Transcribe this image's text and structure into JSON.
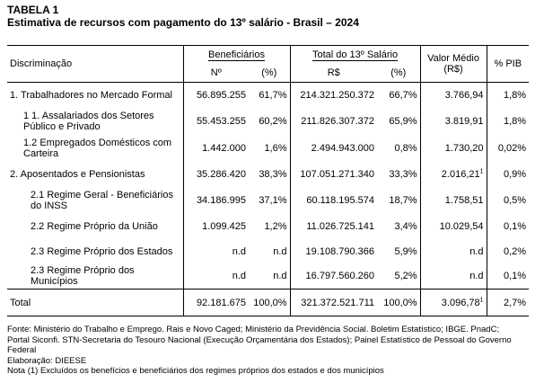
{
  "title": "TABELA 1",
  "subtitle": "Estimativa de recursos com pagamento do 13º salário - Brasil – 2024",
  "headers": {
    "discriminacao": "Discriminação",
    "beneficiarios": "Beneficiários",
    "total13": "Total do 13º Salário",
    "valor_medio": "Valor Médio",
    "valor_medio_unit": "(R$)",
    "pib": "% PIB",
    "n": "Nº",
    "pct1": "(%)",
    "rs": "R$",
    "pct2": "(%)"
  },
  "rows": [
    {
      "label": "1. Trabalhadores no Mercado Formal",
      "n": "56.895.255",
      "pct1": "61,7%",
      "rs": "214.321.250.372",
      "pct2": "66,7%",
      "vm": "3.766,94",
      "vm_note": "",
      "pib": "1,8%"
    },
    {
      "label": "1 1. Assalariados dos Setores Público e Privado",
      "n": "55.453.255",
      "pct1": "60,2%",
      "rs": "211.826.307.372",
      "pct2": "65,9%",
      "vm": "3.819,91",
      "vm_note": "",
      "pib": "1,8%"
    },
    {
      "label": "1.2 Empregados Domésticos com Carteira",
      "n": "1.442.000",
      "pct1": "1,6%",
      "rs": "2.494.943.000",
      "pct2": "0,8%",
      "vm": "1.730,20",
      "vm_note": "",
      "pib": "0,02%"
    },
    {
      "label": "2. Aposentados e Pensionistas",
      "n": "35.286.420",
      "pct1": "38,3%",
      "rs": "107.051.271.340",
      "pct2": "33,3%",
      "vm": "2.016,21",
      "vm_note": "1",
      "pib": "0,9%"
    },
    {
      "label": "2.1 Regime Geral - Beneficiários do INSS",
      "n": "34.186.995",
      "pct1": "37,1%",
      "rs": "60.118.195.574",
      "pct2": "18,7%",
      "vm": "1.758,51",
      "vm_note": "",
      "pib": "0,5%"
    },
    {
      "label": "2.2 Regime Próprio da União",
      "n": "1.099.425",
      "pct1": "1,2%",
      "rs": "11.026.725.141",
      "pct2": "3,4%",
      "vm": "10.029,54",
      "vm_note": "",
      "pib": "0,1%"
    },
    {
      "label": "2.3 Regime Próprio dos Estados",
      "n": "n.d",
      "pct1": "n.d",
      "rs": "19.108.790.366",
      "pct2": "5,9%",
      "vm": "n.d",
      "vm_note": "",
      "pib": "0,2%"
    },
    {
      "label": "2.3 Regime Próprio dos Municípios",
      "n": "n.d",
      "pct1": "n.d",
      "rs": "16.797.560.260",
      "pct2": "5,2%",
      "vm": "n.d",
      "vm_note": "",
      "pib": "0,1%"
    }
  ],
  "total": {
    "label": "Total",
    "n": "92.181.675",
    "pct1": "100,0%",
    "rs": "321.372.521.711",
    "pct2": "100,0%",
    "vm": "3.096,78",
    "vm_note": "1",
    "pib": "2,7%"
  },
  "notes": [
    "Fonte: Ministério do Trabalho e Emprego. Rais e Novo Caged; Ministério da Previdência Social. Boletim Estatístico; IBGE. PnadC;",
    "Portal Siconfi. STN-Secretaria do Tesouro Nacional (Execução Orçamentária dos Estados); Painel Estatístico de Pessoal do Governo",
    "Federal",
    "Elaboração: DIEESE",
    "Nota (1) Excluídos os benefícios e beneficiários dos regimes próprios dos estados e dos municípios"
  ]
}
